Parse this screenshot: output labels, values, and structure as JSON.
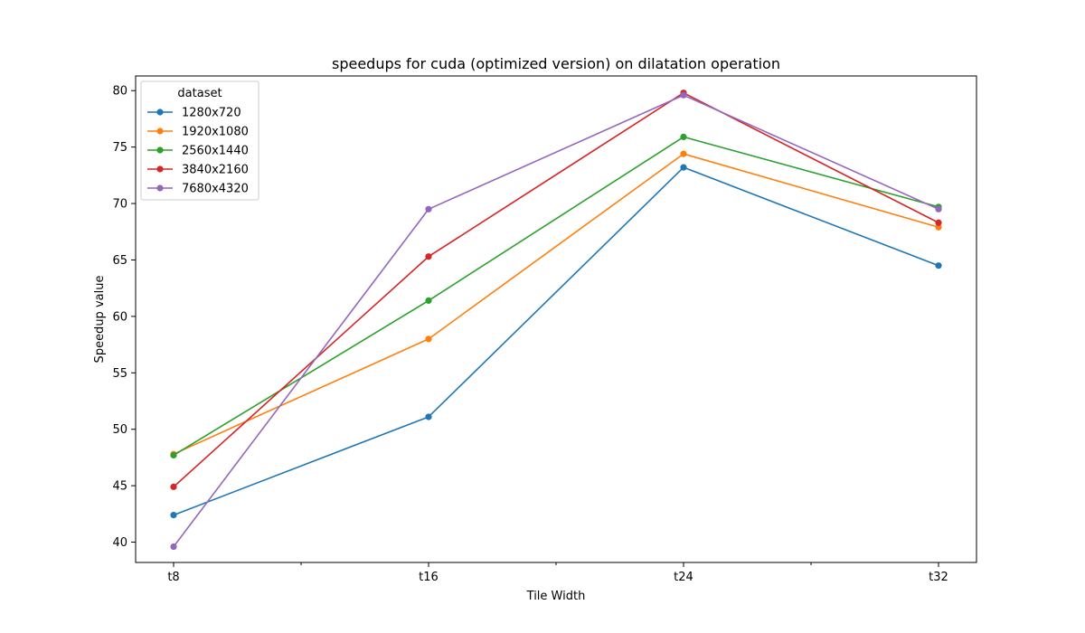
{
  "chart_data": {
    "type": "line",
    "title": "speedups for cuda (optimized version) on dilatation operation",
    "xlabel": "Tile Width",
    "ylabel": "Speedup value",
    "categories": [
      "t8",
      "t16",
      "t24",
      "t32"
    ],
    "ylim": [
      38.2,
      81.3
    ],
    "yticks": [
      40,
      45,
      50,
      55,
      60,
      65,
      70,
      75,
      80
    ],
    "grid": false,
    "legend": {
      "title": "dataset",
      "placement": "top-left"
    },
    "series": [
      {
        "name": "1280x720",
        "color": "#1f77b4",
        "values": [
          42.4,
          51.1,
          73.2,
          64.5
        ]
      },
      {
        "name": "1920x1080",
        "color": "#ff7f0e",
        "values": [
          47.8,
          58.0,
          74.4,
          67.9
        ]
      },
      {
        "name": "2560x1440",
        "color": "#2ca02c",
        "values": [
          47.7,
          61.4,
          75.9,
          69.7
        ]
      },
      {
        "name": "3840x2160",
        "color": "#d62728",
        "values": [
          44.9,
          65.3,
          79.8,
          68.3
        ]
      },
      {
        "name": "7680x4320",
        "color": "#9467bd",
        "values": [
          39.6,
          69.5,
          79.6,
          69.5
        ]
      }
    ]
  }
}
